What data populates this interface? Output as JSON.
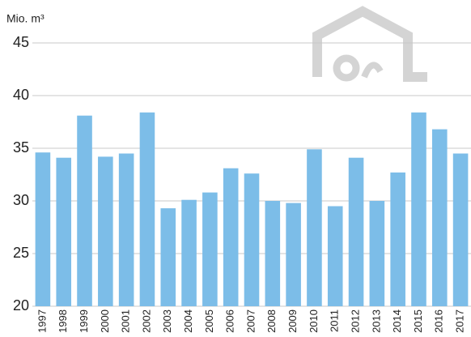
{
  "chart_data": {
    "type": "bar",
    "y_label": "Mio. m³",
    "categories": [
      "1997",
      "1998",
      "1999",
      "2000",
      "2001",
      "2002",
      "2003",
      "2004",
      "2005",
      "2006",
      "2007",
      "2008",
      "2009",
      "2010",
      "2011",
      "2012",
      "2013",
      "2014",
      "2015",
      "2016",
      "2017"
    ],
    "values": [
      34.6,
      34.1,
      38.1,
      34.2,
      34.5,
      38.4,
      29.3,
      30.1,
      30.8,
      33.1,
      32.6,
      30.0,
      29.8,
      34.9,
      29.5,
      34.1,
      30.0,
      32.7,
      38.4,
      36.8,
      34.5
    ],
    "color": "#7cbde8",
    "ylim": [
      20,
      45
    ],
    "yticks": [
      20,
      25,
      30,
      35,
      40,
      45
    ],
    "grid": true
  }
}
